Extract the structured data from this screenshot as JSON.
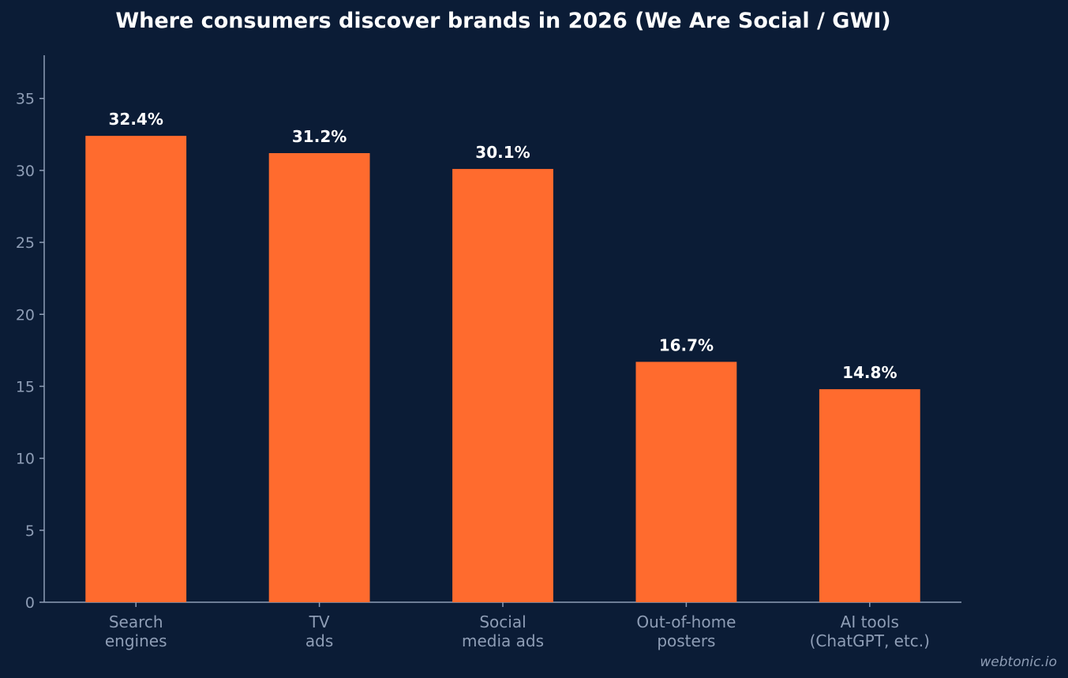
{
  "chart_data": {
    "type": "bar",
    "title": "Where consumers discover brands in 2026 (We Are Social / GWI)",
    "xlabel": "",
    "ylabel": "",
    "categories": [
      [
        "Search",
        "engines"
      ],
      [
        "TV",
        "ads"
      ],
      [
        "Social",
        "media ads"
      ],
      [
        "Out-of-home",
        "posters"
      ],
      [
        "AI tools",
        "(ChatGPT, etc.)"
      ]
    ],
    "values": [
      32.4,
      31.2,
      30.1,
      16.7,
      14.8
    ],
    "value_labels": [
      "32.4%",
      "31.2%",
      "30.1%",
      "16.7%",
      "14.8%"
    ],
    "ylim": [
      0,
      38
    ],
    "yticks": [
      0,
      5,
      10,
      15,
      20,
      25,
      30,
      35
    ],
    "grid": false,
    "colors": {
      "background": "#0b1c36",
      "bar": "#ff6b2e",
      "axis": "#8e9db5",
      "label": "#ffffff"
    }
  },
  "watermark": "webtonic.io"
}
